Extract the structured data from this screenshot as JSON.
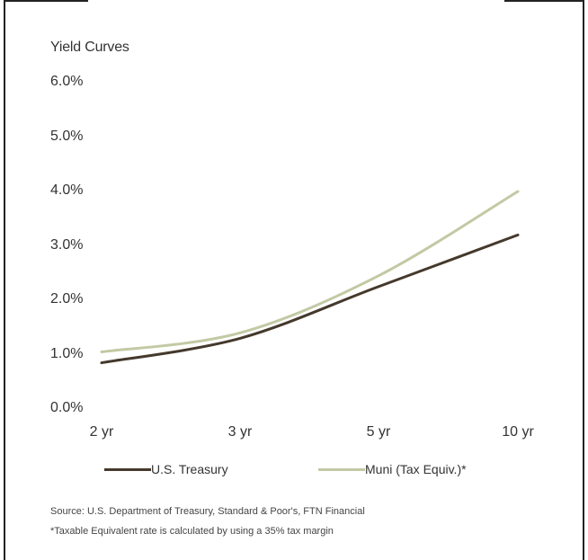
{
  "chart_data": {
    "type": "line",
    "title": "Yield Curves",
    "categories": [
      "2 yr",
      "3 yr",
      "5 yr",
      "10 yr"
    ],
    "y_ticks": [
      "6.0%",
      "5.0%",
      "4.0%",
      "3.0%",
      "2.0%",
      "1.0%",
      "0.0%"
    ],
    "ylim": [
      0,
      6
    ],
    "series": [
      {
        "name": "U.S. Treasury",
        "values": [
          0.85,
          1.3,
          2.25,
          3.2
        ],
        "color": "#45392c"
      },
      {
        "name": "Muni (Tax Equiv.)*",
        "values": [
          1.05,
          1.4,
          2.45,
          4.0
        ],
        "color": "#c2c9a4"
      }
    ],
    "legend_placement": "bottom",
    "grid": false
  },
  "notes": {
    "source": "Source: U.S. Department of Treasury, Standard & Poor's, FTN Financial",
    "footnote": "*Taxable Equivalent rate is calculated by using a 35% tax margin"
  }
}
